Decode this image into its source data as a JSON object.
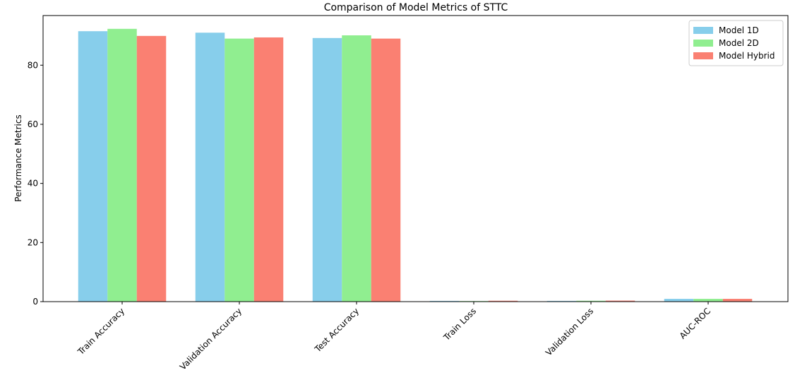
{
  "chart_data": {
    "type": "bar",
    "title": "Comparison of Model Metrics of STTC",
    "xlabel": "",
    "ylabel": "Performance Metrics",
    "categories": [
      "Train Accuracy",
      "Validation Accuracy",
      "Test Accuracy",
      "Train Loss",
      "Validation Loss",
      "AUC-ROC"
    ],
    "series": [
      {
        "name": "Model 1D",
        "color": "#87CEEB",
        "values": [
          91.5,
          91.0,
          89.2,
          0.25,
          0.25,
          0.95
        ]
      },
      {
        "name": "Model 2D",
        "color": "#90EE90",
        "values": [
          92.3,
          89.0,
          90.1,
          0.2,
          0.3,
          0.95
        ]
      },
      {
        "name": "Model Hybrid",
        "color": "#FA8072",
        "values": [
          89.9,
          89.4,
          89.0,
          0.3,
          0.35,
          0.95
        ]
      }
    ],
    "ylim": [
      0,
      96.8
    ],
    "yticks": [
      0,
      20,
      40,
      60,
      80
    ],
    "grid": false,
    "legend_position": "top-right"
  }
}
